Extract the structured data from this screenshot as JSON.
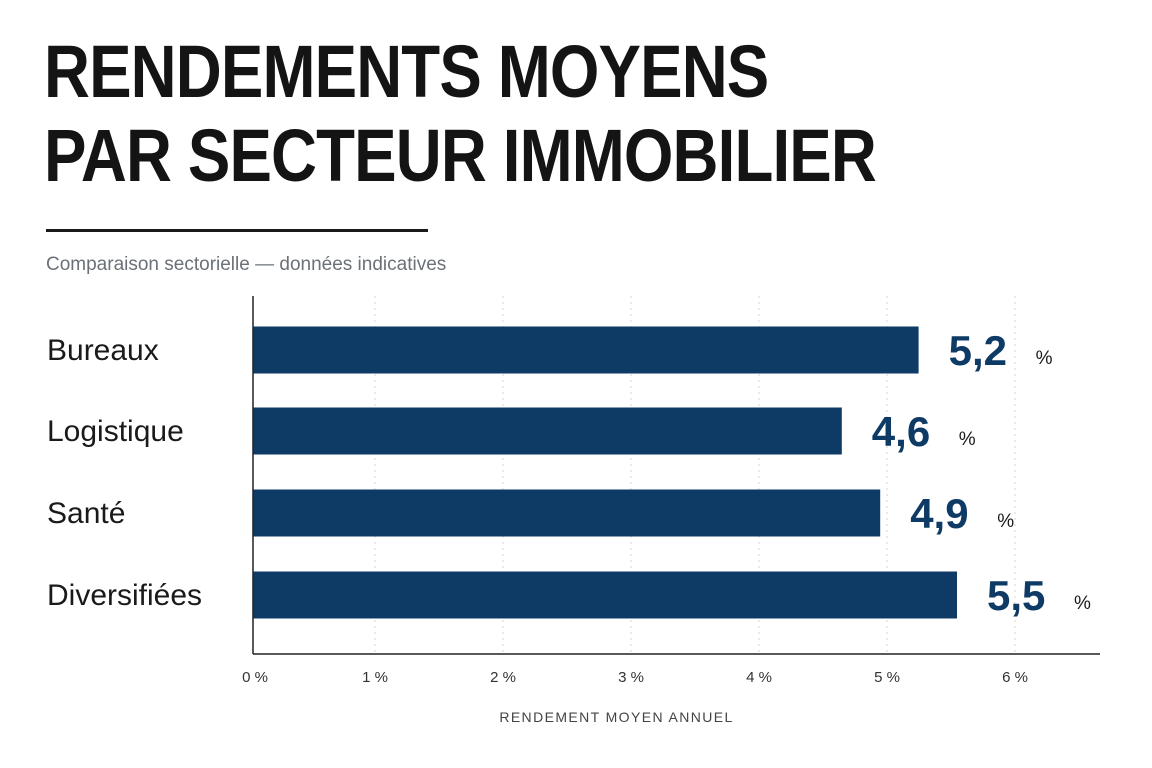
{
  "header": {
    "title_line1": "RENDEMENTS MOYENS",
    "title_line2": "PAR SECTEUR IMMOBILIER",
    "subtitle": "Comparaison sectorielle — données indicatives"
  },
  "chart_data": {
    "type": "bar",
    "orientation": "horizontal",
    "categories": [
      "Bureaux",
      "Logistique",
      "Santé",
      "Diversifiées"
    ],
    "values": [
      5.2,
      4.6,
      4.9,
      5.5
    ],
    "value_labels": [
      "5,2",
      "4,6",
      "4,9",
      "5,5"
    ],
    "value_unit": "%",
    "xlim": [
      0,
      6
    ],
    "ticks": [
      0,
      1,
      2,
      3,
      4,
      5,
      6
    ],
    "tick_labels": [
      "0 %",
      "1 %",
      "2 %",
      "3 %",
      "4 %",
      "5 %",
      "6 %"
    ],
    "xlabel": "RENDEMENT MOYEN ANNUEL",
    "ylabel": "",
    "grid": "vertical dotted",
    "colors": {
      "bar": "#0e3a66",
      "value_text": "#0e3a66",
      "grid": "#d4d4d4",
      "axis": "#222222"
    }
  }
}
